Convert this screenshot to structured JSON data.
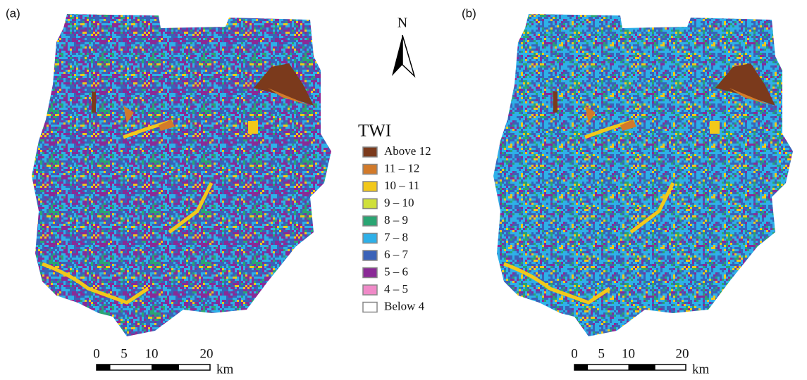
{
  "panels": [
    {
      "label": "(a)",
      "scale": {
        "ticks": [
          0,
          5,
          10,
          20
        ],
        "unit": "km"
      }
    },
    {
      "label": "(b)",
      "scale": {
        "ticks": [
          0,
          5,
          10,
          20
        ],
        "unit": "km"
      }
    }
  ],
  "north_arrow": {
    "label": "N"
  },
  "legend": {
    "title": "TWI",
    "items": [
      {
        "label": "Above 12",
        "color": "#7b3a1c"
      },
      {
        "label": "11 – 12",
        "color": "#d27a2a"
      },
      {
        "label": "10 – 11",
        "color": "#f2c81a"
      },
      {
        "label": "9 – 10",
        "color": "#cfe03a"
      },
      {
        "label": "8 – 9",
        "color": "#2aa573"
      },
      {
        "label": "7 – 8",
        "color": "#2eb0e8"
      },
      {
        "label": "6 – 7",
        "color": "#3a62b8"
      },
      {
        "label": "5 – 6",
        "color": "#8a2a96"
      },
      {
        "label": "4 – 5",
        "color": "#f08ac8"
      },
      {
        "label": "Below 4",
        "color": "#ffffff"
      }
    ]
  }
}
